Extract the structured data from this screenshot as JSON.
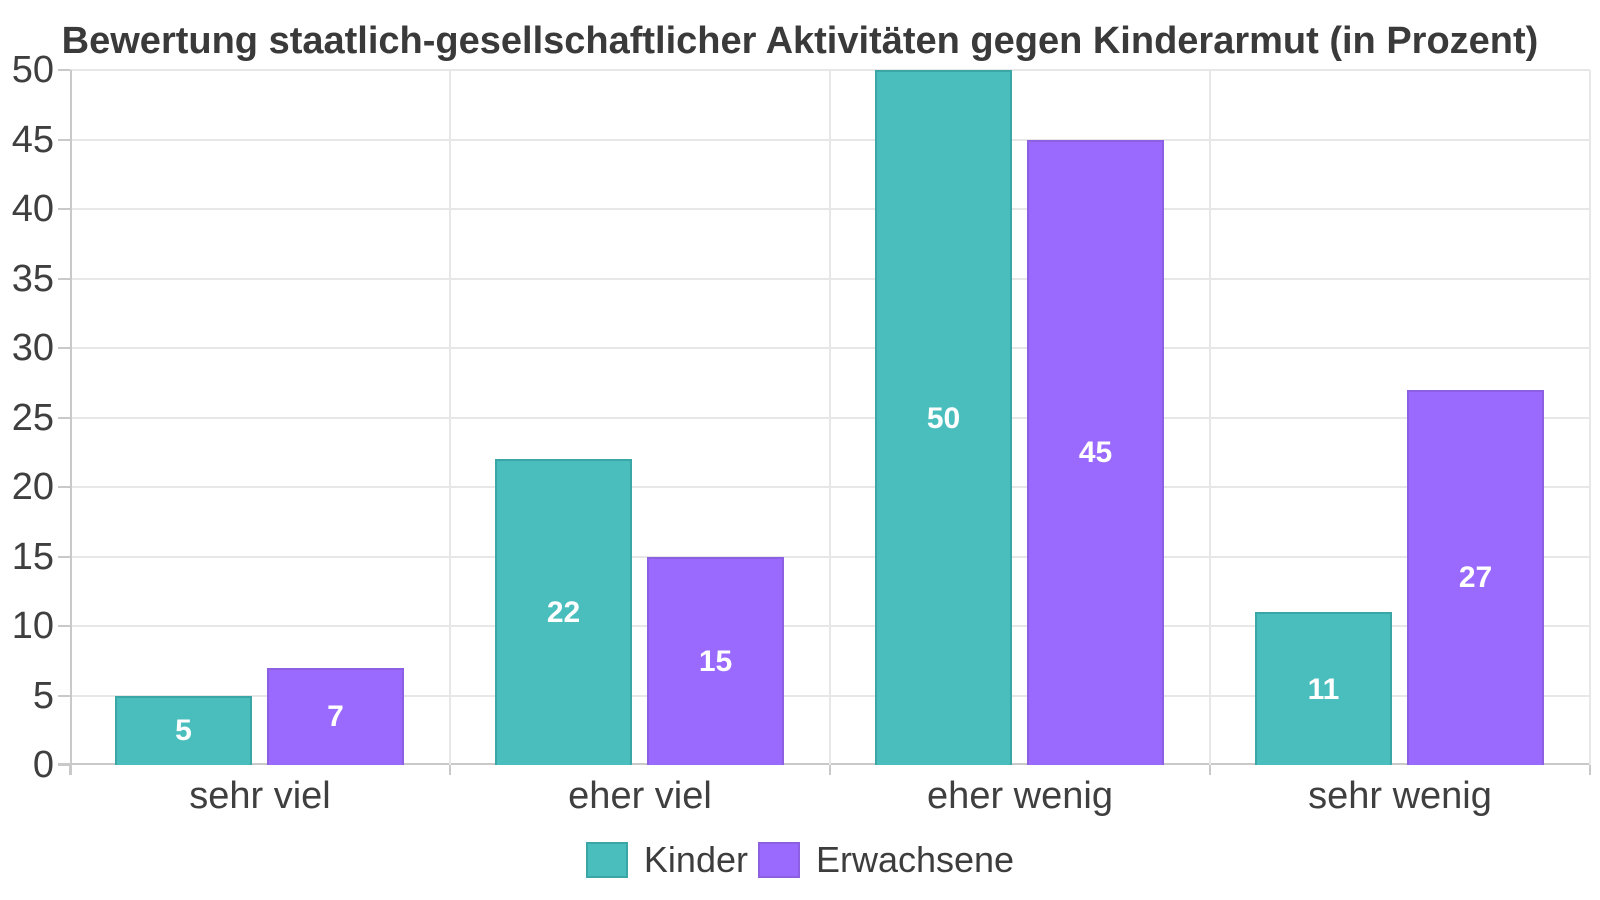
{
  "chart_data": {
    "type": "bar",
    "title": "Bewertung staatlich-gesellschaftlicher Aktivitäten gegen Kinderarmut (in Prozent)",
    "categories": [
      "sehr viel",
      "eher viel",
      "eher wenig",
      "sehr wenig"
    ],
    "series": [
      {
        "name": "Kinder",
        "values": [
          5,
          22,
          50,
          11
        ],
        "fill": "#49BEBD",
        "border": "#3AA7A6"
      },
      {
        "name": "Erwachsene",
        "values": [
          7,
          15,
          45,
          27
        ],
        "fill": "#9A69FD",
        "border": "#8C5FE3"
      }
    ],
    "ylim": [
      0,
      50
    ],
    "yticks": [
      0,
      5,
      10,
      15,
      20,
      25,
      30,
      35,
      40,
      45,
      50
    ],
    "grid": true,
    "legend_position": "bottom",
    "value_label_color": "#ffffff",
    "axis_text_color": "#3f3f3f",
    "grid_color": "#e7e7e7",
    "axis_line_color": "#c9c9c9"
  }
}
